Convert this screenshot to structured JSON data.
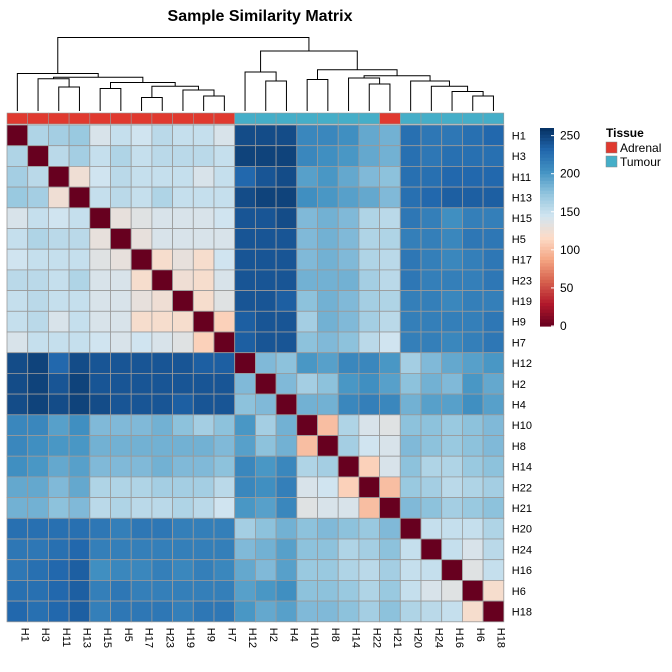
{
  "chart_data": {
    "type": "heatmap",
    "title": "Sample Similarity Matrix",
    "labels": [
      "H1",
      "H3",
      "H11",
      "H13",
      "H15",
      "H5",
      "H17",
      "H23",
      "H19",
      "H9",
      "H7",
      "H12",
      "H2",
      "H4",
      "H10",
      "H8",
      "H14",
      "H22",
      "H21",
      "H20",
      "H24",
      "H16",
      "H6",
      "H18"
    ],
    "tissue": [
      "Adrenal",
      "Adrenal",
      "Adrenal",
      "Adrenal",
      "Adrenal",
      "Adrenal",
      "Adrenal",
      "Adrenal",
      "Adrenal",
      "Adrenal",
      "Adrenal",
      "Tumour",
      "Tumour",
      "Tumour",
      "Tumour",
      "Tumour",
      "Tumour",
      "Tumour",
      "Adrenal",
      "Tumour",
      "Tumour",
      "Tumour",
      "Tumour",
      "Tumour"
    ],
    "matrix": [
      [
        0,
        160,
        165,
        170,
        140,
        150,
        145,
        155,
        150,
        150,
        140,
        245,
        245,
        245,
        210,
        210,
        205,
        190,
        185,
        225,
        220,
        220,
        225,
        230
      ],
      [
        160,
        0,
        155,
        165,
        150,
        160,
        150,
        155,
        155,
        155,
        150,
        250,
        250,
        250,
        210,
        205,
        200,
        190,
        185,
        225,
        220,
        225,
        225,
        225
      ],
      [
        165,
        155,
        0,
        125,
        145,
        155,
        150,
        150,
        150,
        140,
        150,
        230,
        240,
        245,
        195,
        200,
        190,
        180,
        175,
        225,
        225,
        230,
        230,
        230
      ],
      [
        170,
        165,
        125,
        0,
        150,
        155,
        150,
        160,
        150,
        150,
        150,
        245,
        250,
        250,
        205,
        200,
        195,
        190,
        180,
        225,
        230,
        235,
        235,
        235
      ],
      [
        140,
        150,
        145,
        150,
        0,
        130,
        135,
        140,
        140,
        140,
        145,
        240,
        240,
        245,
        180,
        185,
        180,
        160,
        155,
        220,
        215,
        205,
        215,
        215
      ],
      [
        150,
        160,
        155,
        155,
        130,
        0,
        130,
        140,
        140,
        140,
        140,
        240,
        240,
        240,
        180,
        185,
        180,
        160,
        160,
        215,
        215,
        210,
        220,
        220
      ],
      [
        145,
        150,
        150,
        150,
        135,
        130,
        0,
        120,
        130,
        120,
        145,
        240,
        240,
        240,
        180,
        185,
        180,
        160,
        155,
        220,
        215,
        210,
        215,
        220
      ],
      [
        155,
        155,
        150,
        160,
        140,
        140,
        120,
        0,
        125,
        120,
        140,
        240,
        240,
        240,
        185,
        185,
        185,
        165,
        155,
        220,
        215,
        215,
        215,
        220
      ],
      [
        150,
        155,
        150,
        150,
        140,
        140,
        130,
        125,
        0,
        120,
        135,
        240,
        240,
        235,
        175,
        185,
        180,
        165,
        160,
        215,
        215,
        210,
        215,
        215
      ],
      [
        150,
        155,
        140,
        150,
        140,
        140,
        120,
        120,
        120,
        0,
        110,
        235,
        240,
        240,
        165,
        185,
        180,
        165,
        155,
        215,
        215,
        215,
        215,
        220
      ],
      [
        140,
        150,
        150,
        150,
        145,
        140,
        145,
        140,
        135,
        110,
        0,
        235,
        240,
        240,
        175,
        180,
        175,
        155,
        145,
        215,
        215,
        210,
        215,
        220
      ],
      [
        245,
        250,
        230,
        245,
        240,
        240,
        240,
        240,
        240,
        235,
        235,
        0,
        180,
        175,
        200,
        195,
        210,
        210,
        200,
        165,
        180,
        190,
        195,
        200
      ],
      [
        245,
        250,
        240,
        250,
        240,
        240,
        240,
        240,
        240,
        240,
        240,
        180,
        0,
        180,
        165,
        175,
        200,
        205,
        195,
        175,
        185,
        180,
        200,
        190
      ],
      [
        245,
        250,
        245,
        250,
        245,
        240,
        240,
        240,
        235,
        240,
        240,
        175,
        180,
        0,
        185,
        185,
        210,
        215,
        210,
        185,
        195,
        195,
        205,
        195
      ],
      [
        210,
        210,
        195,
        205,
        180,
        180,
        180,
        185,
        175,
        165,
        175,
        200,
        165,
        185,
        0,
        100,
        160,
        140,
        135,
        175,
        175,
        170,
        175,
        180
      ],
      [
        210,
        205,
        200,
        200,
        185,
        185,
        185,
        185,
        185,
        185,
        180,
        195,
        175,
        185,
        100,
        0,
        165,
        145,
        140,
        180,
        175,
        170,
        175,
        180
      ],
      [
        205,
        200,
        190,
        195,
        180,
        180,
        180,
        185,
        180,
        180,
        175,
        210,
        200,
        210,
        160,
        165,
        0,
        110,
        140,
        175,
        160,
        160,
        170,
        175
      ],
      [
        190,
        190,
        180,
        190,
        160,
        160,
        160,
        165,
        165,
        165,
        155,
        210,
        205,
        215,
        140,
        145,
        110,
        0,
        100,
        170,
        165,
        155,
        160,
        165
      ],
      [
        185,
        185,
        175,
        180,
        155,
        160,
        155,
        155,
        160,
        155,
        145,
        200,
        195,
        210,
        135,
        140,
        140,
        100,
        0,
        180,
        175,
        165,
        170,
        175
      ],
      [
        225,
        225,
        225,
        225,
        220,
        215,
        220,
        220,
        215,
        215,
        215,
        165,
        175,
        185,
        175,
        180,
        175,
        170,
        180,
        0,
        150,
        150,
        150,
        160
      ],
      [
        220,
        220,
        225,
        230,
        215,
        215,
        215,
        215,
        215,
        215,
        215,
        180,
        185,
        195,
        175,
        175,
        160,
        165,
        175,
        150,
        0,
        150,
        140,
        155
      ],
      [
        220,
        225,
        230,
        235,
        205,
        210,
        210,
        215,
        210,
        215,
        210,
        190,
        180,
        195,
        170,
        170,
        160,
        155,
        165,
        150,
        150,
        0,
        135,
        150
      ],
      [
        225,
        225,
        230,
        235,
        215,
        220,
        215,
        215,
        215,
        215,
        215,
        195,
        200,
        205,
        175,
        175,
        170,
        160,
        170,
        150,
        140,
        135,
        0,
        120
      ],
      [
        230,
        225,
        230,
        235,
        215,
        220,
        220,
        220,
        215,
        220,
        220,
        200,
        190,
        195,
        180,
        180,
        175,
        165,
        175,
        160,
        155,
        150,
        120,
        0
      ]
    ],
    "dendrogram": {
      "merges": [
        [
          0,
          1,
          0.9
        ],
        [
          2,
          3,
          0.78
        ],
        [
          4,
          5,
          0.72
        ],
        [
          6,
          7,
          0.62
        ],
        [
          8,
          9,
          0.48
        ],
        [
          10,
          11,
          0.42
        ],
        [
          12,
          13,
          0.52
        ],
        [
          14,
          15,
          0.38
        ],
        [
          16,
          17,
          0.3
        ],
        [
          18,
          19,
          0.22
        ],
        [
          20,
          21,
          0.12
        ],
        [
          22,
          23,
          0.02
        ],
        [
          1,
          0,
          0.1
        ]
      ],
      "note": ""
    },
    "colorbar": {
      "ticks": [
        0,
        50,
        100,
        150,
        200,
        250
      ],
      "min": 0,
      "max": 260,
      "stops": [
        "#67001f",
        "#b2182b",
        "#d6604d",
        "#f4a582",
        "#fddbc7",
        "#d1e5f0",
        "#92c5de",
        "#4393c3",
        "#2166ac",
        "#053061"
      ]
    },
    "legend": {
      "title": "Tissue",
      "items": [
        {
          "label": "Adrenal",
          "color": "#e0392f"
        },
        {
          "label": "Tumour",
          "color": "#45aec8"
        }
      ]
    }
  }
}
